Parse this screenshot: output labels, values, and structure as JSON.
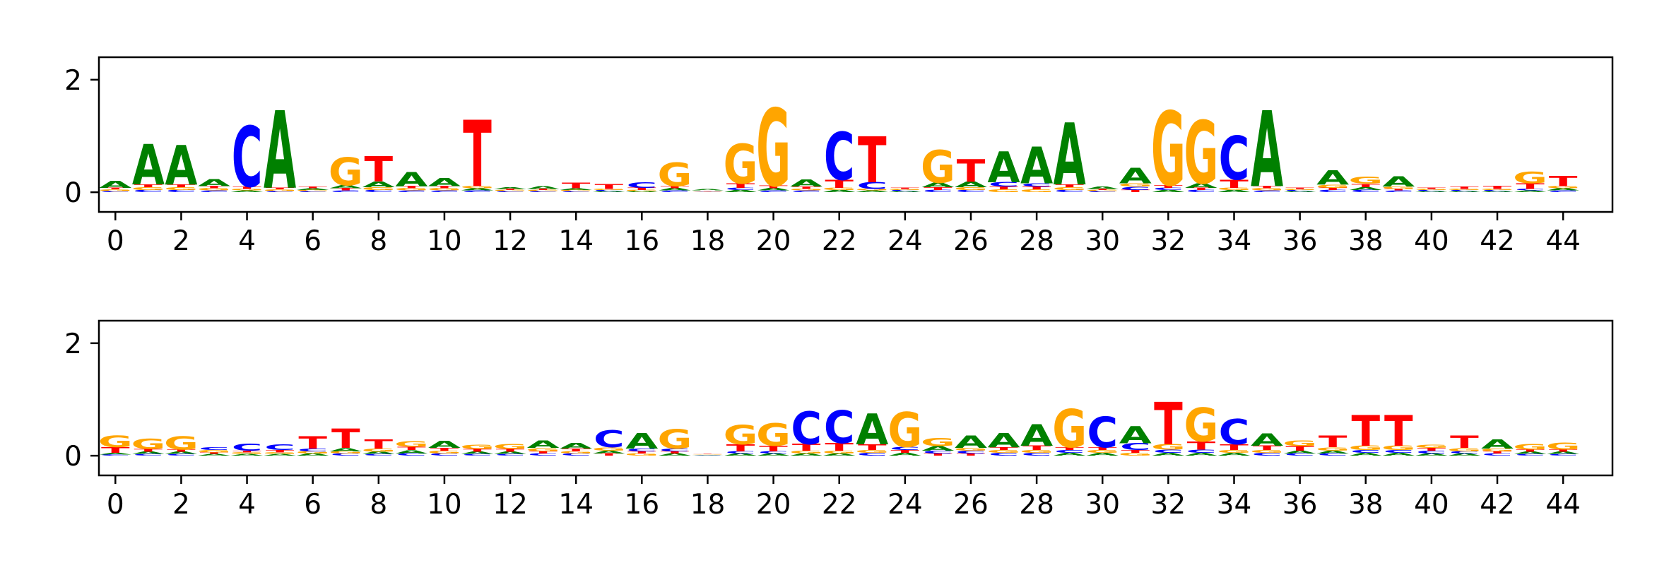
{
  "colors": {
    "A": "#008000",
    "C": "#0000ff",
    "G": "#ffa500",
    "T": "#ff0000",
    "axis": "#000000",
    "background": "#ffffff"
  },
  "chart_data": [
    {
      "type": "sequence-logo",
      "title": "",
      "xlabel": "",
      "ylabel": "",
      "xlim": [
        -0.5,
        45.5
      ],
      "ylim": [
        -0.35,
        2.4
      ],
      "xticks": [
        0,
        2,
        4,
        6,
        8,
        10,
        12,
        14,
        16,
        18,
        20,
        22,
        24,
        26,
        28,
        30,
        32,
        34,
        36,
        38,
        40,
        42,
        44
      ],
      "yticks": [
        0,
        2
      ],
      "grid": false,
      "positions": [
        {
          "pos": 0,
          "A": 0.12,
          "C": 0.02,
          "G": 0.03,
          "T": 0.03
        },
        {
          "pos": 1,
          "A": 0.72,
          "C": 0.04,
          "G": 0.05,
          "T": 0.05
        },
        {
          "pos": 2,
          "A": 0.7,
          "C": 0.04,
          "G": 0.05,
          "T": 0.05
        },
        {
          "pos": 3,
          "A": 0.12,
          "C": 0.03,
          "G": 0.04,
          "T": 0.04
        },
        {
          "pos": 4,
          "A": 0.03,
          "C": 1.08,
          "G": 0.03,
          "T": 0.04
        },
        {
          "pos": 5,
          "A": 1.38,
          "C": 0.02,
          "G": 0.03,
          "T": 0.03
        },
        {
          "pos": 6,
          "A": 0.03,
          "C": 0.02,
          "G": 0.02,
          "T": 0.03
        },
        {
          "pos": 7,
          "A": 0.06,
          "C": 0.03,
          "G": 0.5,
          "T": 0.04
        },
        {
          "pos": 8,
          "A": 0.1,
          "C": 0.04,
          "G": 0.05,
          "T": 0.45
        },
        {
          "pos": 9,
          "A": 0.25,
          "C": 0.03,
          "G": 0.04,
          "T": 0.04
        },
        {
          "pos": 10,
          "A": 0.15,
          "C": 0.03,
          "G": 0.04,
          "T": 0.04
        },
        {
          "pos": 11,
          "A": 0.04,
          "C": 0.03,
          "G": 0.04,
          "T": 1.18
        },
        {
          "pos": 12,
          "A": 0.03,
          "C": 0.02,
          "G": 0.02,
          "T": 0.02
        },
        {
          "pos": 13,
          "A": 0.05,
          "C": 0.02,
          "G": 0.02,
          "T": 0.02
        },
        {
          "pos": 14,
          "A": 0.03,
          "C": 0.02,
          "G": 0.02,
          "T": 0.1
        },
        {
          "pos": 15,
          "A": 0.02,
          "C": 0.02,
          "G": 0.02,
          "T": 0.09
        },
        {
          "pos": 16,
          "A": 0.02,
          "C": 0.1,
          "G": 0.02,
          "T": 0.04
        },
        {
          "pos": 17,
          "A": 0.04,
          "C": 0.03,
          "G": 0.42,
          "T": 0.04
        },
        {
          "pos": 18,
          "A": 0.02,
          "C": 0.01,
          "G": 0.01,
          "T": 0.01
        },
        {
          "pos": 19,
          "A": 0.04,
          "C": 0.04,
          "G": 0.7,
          "T": 0.08
        },
        {
          "pos": 20,
          "A": 0.04,
          "C": 0.03,
          "G": 1.38,
          "T": 0.05
        },
        {
          "pos": 21,
          "A": 0.12,
          "C": 0.03,
          "G": 0.03,
          "T": 0.04
        },
        {
          "pos": 22,
          "A": 0.04,
          "C": 0.85,
          "G": 0.04,
          "T": 0.15
        },
        {
          "pos": 23,
          "A": 0.03,
          "C": 0.12,
          "G": 0.03,
          "T": 0.82
        },
        {
          "pos": 24,
          "A": 0.02,
          "C": 0.02,
          "G": 0.02,
          "T": 0.02
        },
        {
          "pos": 25,
          "A": 0.08,
          "C": 0.04,
          "G": 0.58,
          "T": 0.05
        },
        {
          "pos": 26,
          "A": 0.1,
          "C": 0.04,
          "G": 0.05,
          "T": 0.4
        },
        {
          "pos": 27,
          "A": 0.55,
          "C": 0.08,
          "G": 0.05,
          "T": 0.05
        },
        {
          "pos": 28,
          "A": 0.65,
          "C": 0.06,
          "G": 0.05,
          "T": 0.05
        },
        {
          "pos": 29,
          "A": 1.1,
          "C": 0.04,
          "G": 0.05,
          "T": 0.05
        },
        {
          "pos": 30,
          "A": 0.04,
          "C": 0.02,
          "G": 0.02,
          "T": 0.02
        },
        {
          "pos": 31,
          "A": 0.28,
          "C": 0.06,
          "G": 0.06,
          "T": 0.04
        },
        {
          "pos": 32,
          "A": 0.04,
          "C": 0.04,
          "G": 1.32,
          "T": 0.05
        },
        {
          "pos": 33,
          "A": 0.08,
          "C": 0.04,
          "G": 1.12,
          "T": 0.04
        },
        {
          "pos": 34,
          "A": 0.04,
          "C": 0.78,
          "G": 0.04,
          "T": 0.15
        },
        {
          "pos": 35,
          "A": 1.35,
          "C": 0.03,
          "G": 0.04,
          "T": 0.04
        },
        {
          "pos": 36,
          "A": 0.02,
          "C": 0.02,
          "G": 0.02,
          "T": 0.02
        },
        {
          "pos": 37,
          "A": 0.25,
          "C": 0.04,
          "G": 0.06,
          "T": 0.04
        },
        {
          "pos": 38,
          "A": 0.05,
          "C": 0.04,
          "G": 0.12,
          "T": 0.06
        },
        {
          "pos": 39,
          "A": 0.18,
          "C": 0.03,
          "G": 0.04,
          "T": 0.03
        },
        {
          "pos": 40,
          "A": 0.02,
          "C": 0.02,
          "G": 0.02,
          "T": 0.02
        },
        {
          "pos": 41,
          "A": 0.02,
          "C": 0.02,
          "G": 0.02,
          "T": 0.04
        },
        {
          "pos": 42,
          "A": 0.02,
          "C": 0.02,
          "G": 0.02,
          "T": 0.06
        },
        {
          "pos": 43,
          "A": 0.03,
          "C": 0.03,
          "G": 0.2,
          "T": 0.1
        },
        {
          "pos": 44,
          "A": 0.04,
          "C": 0.03,
          "G": 0.04,
          "T": 0.18
        }
      ]
    },
    {
      "type": "sequence-logo",
      "title": "",
      "xlabel": "",
      "ylabel": "",
      "xlim": [
        -0.5,
        45.5
      ],
      "ylim": [
        -0.35,
        2.4
      ],
      "xticks": [
        0,
        2,
        4,
        6,
        8,
        10,
        12,
        14,
        16,
        18,
        20,
        22,
        24,
        26,
        28,
        30,
        32,
        34,
        36,
        38,
        40,
        42,
        44
      ],
      "yticks": [
        0,
        2
      ],
      "grid": false,
      "positions": [
        {
          "pos": 0,
          "A": 0.03,
          "C": 0.02,
          "G": 0.2,
          "T": 0.1
        },
        {
          "pos": 1,
          "A": 0.04,
          "C": 0.03,
          "G": 0.18,
          "T": 0.05
        },
        {
          "pos": 2,
          "A": 0.04,
          "C": 0.03,
          "G": 0.24,
          "T": 0.04
        },
        {
          "pos": 3,
          "A": 0.03,
          "C": 0.05,
          "G": 0.04,
          "T": 0.03
        },
        {
          "pos": 4,
          "A": 0.03,
          "C": 0.12,
          "G": 0.03,
          "T": 0.03
        },
        {
          "pos": 5,
          "A": 0.03,
          "C": 0.1,
          "G": 0.03,
          "T": 0.04
        },
        {
          "pos": 6,
          "A": 0.04,
          "C": 0.05,
          "G": 0.04,
          "T": 0.22
        },
        {
          "pos": 7,
          "A": 0.06,
          "C": 0.04,
          "G": 0.04,
          "T": 0.34
        },
        {
          "pos": 8,
          "A": 0.04,
          "C": 0.03,
          "G": 0.06,
          "T": 0.16
        },
        {
          "pos": 9,
          "A": 0.06,
          "C": 0.04,
          "G": 0.1,
          "T": 0.06
        },
        {
          "pos": 10,
          "A": 0.12,
          "C": 0.04,
          "G": 0.05,
          "T": 0.05
        },
        {
          "pos": 11,
          "A": 0.04,
          "C": 0.03,
          "G": 0.07,
          "T": 0.05
        },
        {
          "pos": 12,
          "A": 0.04,
          "C": 0.03,
          "G": 0.09,
          "T": 0.05
        },
        {
          "pos": 13,
          "A": 0.13,
          "C": 0.04,
          "G": 0.06,
          "T": 0.04
        },
        {
          "pos": 14,
          "A": 0.1,
          "C": 0.04,
          "G": 0.04,
          "T": 0.05
        },
        {
          "pos": 15,
          "A": 0.05,
          "C": 0.3,
          "G": 0.06,
          "T": 0.04
        },
        {
          "pos": 16,
          "A": 0.28,
          "C": 0.05,
          "G": 0.04,
          "T": 0.04
        },
        {
          "pos": 17,
          "A": 0.04,
          "C": 0.05,
          "G": 0.34,
          "T": 0.04
        },
        {
          "pos": 18,
          "A": 0.01,
          "C": 0.01,
          "G": 0.01,
          "T": 0.01
        },
        {
          "pos": 19,
          "A": 0.04,
          "C": 0.04,
          "G": 0.34,
          "T": 0.12
        },
        {
          "pos": 20,
          "A": 0.04,
          "C": 0.04,
          "G": 0.4,
          "T": 0.1
        },
        {
          "pos": 21,
          "A": 0.04,
          "C": 0.58,
          "G": 0.05,
          "T": 0.12
        },
        {
          "pos": 22,
          "A": 0.04,
          "C": 0.58,
          "G": 0.05,
          "T": 0.14
        },
        {
          "pos": 23,
          "A": 0.55,
          "C": 0.05,
          "G": 0.05,
          "T": 0.1
        },
        {
          "pos": 24,
          "A": 0.05,
          "C": 0.06,
          "G": 0.62,
          "T": 0.05
        },
        {
          "pos": 25,
          "A": 0.08,
          "C": 0.05,
          "G": 0.15,
          "T": 0.04
        },
        {
          "pos": 26,
          "A": 0.22,
          "C": 0.05,
          "G": 0.05,
          "T": 0.04
        },
        {
          "pos": 27,
          "A": 0.25,
          "C": 0.05,
          "G": 0.05,
          "T": 0.05
        },
        {
          "pos": 28,
          "A": 0.38,
          "C": 0.05,
          "G": 0.05,
          "T": 0.08
        },
        {
          "pos": 29,
          "A": 0.05,
          "C": 0.05,
          "G": 0.68,
          "T": 0.05
        },
        {
          "pos": 30,
          "A": 0.05,
          "C": 0.55,
          "G": 0.05,
          "T": 0.05
        },
        {
          "pos": 31,
          "A": 0.3,
          "C": 0.12,
          "G": 0.05,
          "T": 0.05
        },
        {
          "pos": 32,
          "A": 0.05,
          "C": 0.06,
          "G": 0.1,
          "T": 0.75
        },
        {
          "pos": 33,
          "A": 0.05,
          "C": 0.06,
          "G": 0.6,
          "T": 0.15
        },
        {
          "pos": 34,
          "A": 0.05,
          "C": 0.45,
          "G": 0.05,
          "T": 0.1
        },
        {
          "pos": 35,
          "A": 0.22,
          "C": 0.05,
          "G": 0.05,
          "T": 0.08
        },
        {
          "pos": 36,
          "A": 0.05,
          "C": 0.04,
          "G": 0.1,
          "T": 0.08
        },
        {
          "pos": 37,
          "A": 0.05,
          "C": 0.04,
          "G": 0.06,
          "T": 0.2
        },
        {
          "pos": 38,
          "A": 0.05,
          "C": 0.05,
          "G": 0.08,
          "T": 0.55
        },
        {
          "pos": 39,
          "A": 0.05,
          "C": 0.05,
          "G": 0.08,
          "T": 0.55
        },
        {
          "pos": 40,
          "A": 0.04,
          "C": 0.05,
          "G": 0.06,
          "T": 0.05
        },
        {
          "pos": 41,
          "A": 0.04,
          "C": 0.04,
          "G": 0.06,
          "T": 0.22
        },
        {
          "pos": 42,
          "A": 0.16,
          "C": 0.04,
          "G": 0.05,
          "T": 0.04
        },
        {
          "pos": 43,
          "A": 0.04,
          "C": 0.03,
          "G": 0.1,
          "T": 0.04
        },
        {
          "pos": 44,
          "A": 0.04,
          "C": 0.03,
          "G": 0.12,
          "T": 0.04
        }
      ]
    }
  ]
}
